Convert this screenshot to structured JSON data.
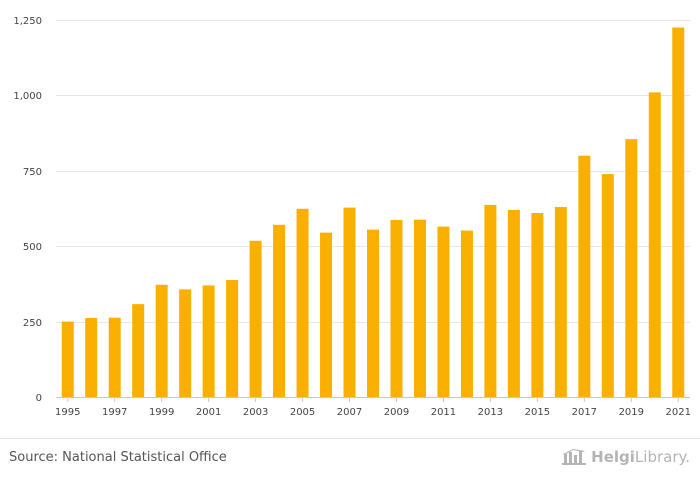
{
  "chart_data": {
    "type": "bar",
    "title": "",
    "xlabel": "",
    "ylabel": "",
    "categories": [
      "1995",
      "1996",
      "1997",
      "1998",
      "1999",
      "2000",
      "2001",
      "2002",
      "2003",
      "2004",
      "2005",
      "2006",
      "2007",
      "2008",
      "2009",
      "2010",
      "2011",
      "2012",
      "2013",
      "2014",
      "2015",
      "2016",
      "2017",
      "2018",
      "2019",
      "2020",
      "2021"
    ],
    "x_tick_labels": [
      "1995",
      "1997",
      "1999",
      "2001",
      "2003",
      "2005",
      "2007",
      "2009",
      "2011",
      "2013",
      "2015",
      "2017",
      "2019",
      "2021"
    ],
    "values": [
      250,
      262,
      263,
      308,
      372,
      357,
      370,
      388,
      518,
      571,
      624,
      545,
      628,
      555,
      587,
      588,
      565,
      552,
      637,
      620,
      610,
      630,
      800,
      739,
      855,
      1010,
      1225
    ],
    "ylim": [
      0,
      1250
    ],
    "y_ticks": [
      0,
      250,
      500,
      750,
      1000,
      1250
    ],
    "y_tick_labels": [
      "0",
      "250",
      "500",
      "750",
      "1,000",
      "1,250"
    ],
    "grid": true,
    "bar_color": "#F9B000"
  },
  "footer": {
    "source": "Source: National Statistical Office",
    "brand_part1": "Helgi",
    "brand_part2": "Library."
  },
  "colors": {
    "bar": "#F9B000",
    "grid": "#e6e6e6",
    "brand": "#b4b4b4"
  }
}
